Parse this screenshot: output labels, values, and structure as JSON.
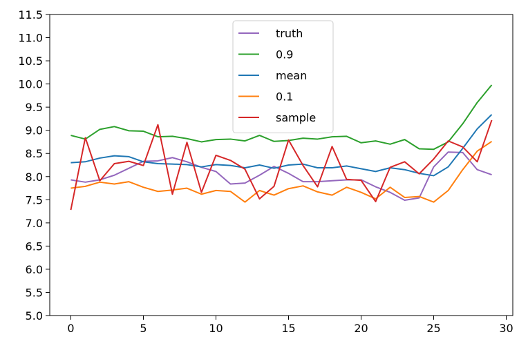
{
  "chart_data": {
    "type": "line",
    "title": "",
    "xlabel": "",
    "ylabel": "",
    "xlim": [
      -1.45,
      30.45
    ],
    "ylim": [
      5.0,
      11.5
    ],
    "grid": false,
    "legend_position": "top-center",
    "x_ticks": [
      0,
      5,
      10,
      15,
      20,
      25,
      30
    ],
    "x_tick_labels": [
      "0",
      "5",
      "10",
      "15",
      "20",
      "25",
      "30"
    ],
    "y_ticks": [
      5.0,
      5.5,
      6.0,
      6.5,
      7.0,
      7.5,
      8.0,
      8.5,
      9.0,
      9.5,
      10.0,
      10.5,
      11.0,
      11.5
    ],
    "y_tick_labels": [
      "5.0",
      "5.5",
      "6.0",
      "6.5",
      "7.0",
      "7.5",
      "8.0",
      "8.5",
      "9.0",
      "9.5",
      "10.0",
      "10.5",
      "11.0",
      "11.5"
    ],
    "x": [
      0,
      1,
      2,
      3,
      4,
      5,
      6,
      7,
      8,
      9,
      10,
      11,
      12,
      13,
      14,
      15,
      16,
      17,
      18,
      19,
      20,
      21,
      22,
      23,
      24,
      25,
      26,
      27,
      28,
      29
    ],
    "series": [
      {
        "name": "truth",
        "color": "#9467bd",
        "values": [
          7.93,
          7.88,
          7.93,
          8.03,
          8.18,
          8.33,
          8.34,
          8.41,
          8.32,
          8.2,
          8.11,
          7.84,
          7.86,
          8.03,
          8.22,
          8.07,
          7.89,
          7.89,
          7.91,
          7.93,
          7.93,
          7.78,
          7.66,
          7.49,
          7.54,
          8.21,
          8.53,
          8.52,
          8.15,
          8.04
        ]
      },
      {
        "name": "0.9",
        "color": "#2ca02c",
        "values": [
          8.89,
          8.81,
          9.02,
          9.08,
          8.99,
          8.98,
          8.86,
          8.87,
          8.82,
          8.75,
          8.8,
          8.81,
          8.77,
          8.89,
          8.76,
          8.78,
          8.83,
          8.81,
          8.86,
          8.87,
          8.73,
          8.77,
          8.7,
          8.8,
          8.6,
          8.59,
          8.75,
          9.14,
          9.6,
          9.98
        ]
      },
      {
        "name": "mean",
        "color": "#1f77b4",
        "values": [
          8.3,
          8.32,
          8.4,
          8.45,
          8.43,
          8.32,
          8.28,
          8.27,
          8.26,
          8.21,
          8.26,
          8.24,
          8.19,
          8.25,
          8.18,
          8.25,
          8.27,
          8.19,
          8.19,
          8.23,
          8.17,
          8.11,
          8.19,
          8.15,
          8.07,
          8.02,
          8.21,
          8.61,
          9.03,
          9.34
        ]
      },
      {
        "name": "0.1",
        "color": "#ff7f0e",
        "values": [
          7.75,
          7.79,
          7.88,
          7.84,
          7.89,
          7.77,
          7.68,
          7.71,
          7.75,
          7.62,
          7.7,
          7.68,
          7.45,
          7.7,
          7.6,
          7.74,
          7.8,
          7.67,
          7.6,
          7.77,
          7.66,
          7.52,
          7.77,
          7.55,
          7.57,
          7.45,
          7.7,
          8.15,
          8.55,
          8.76
        ]
      },
      {
        "name": "sample",
        "color": "#d62728",
        "values": [
          7.28,
          8.84,
          7.91,
          8.28,
          8.33,
          8.24,
          9.12,
          7.62,
          8.74,
          7.66,
          8.46,
          8.35,
          8.16,
          7.52,
          7.79,
          8.79,
          8.24,
          7.78,
          8.65,
          7.94,
          7.92,
          7.46,
          8.2,
          8.32,
          8.06,
          8.38,
          8.77,
          8.64,
          8.32,
          9.22
        ]
      }
    ]
  }
}
